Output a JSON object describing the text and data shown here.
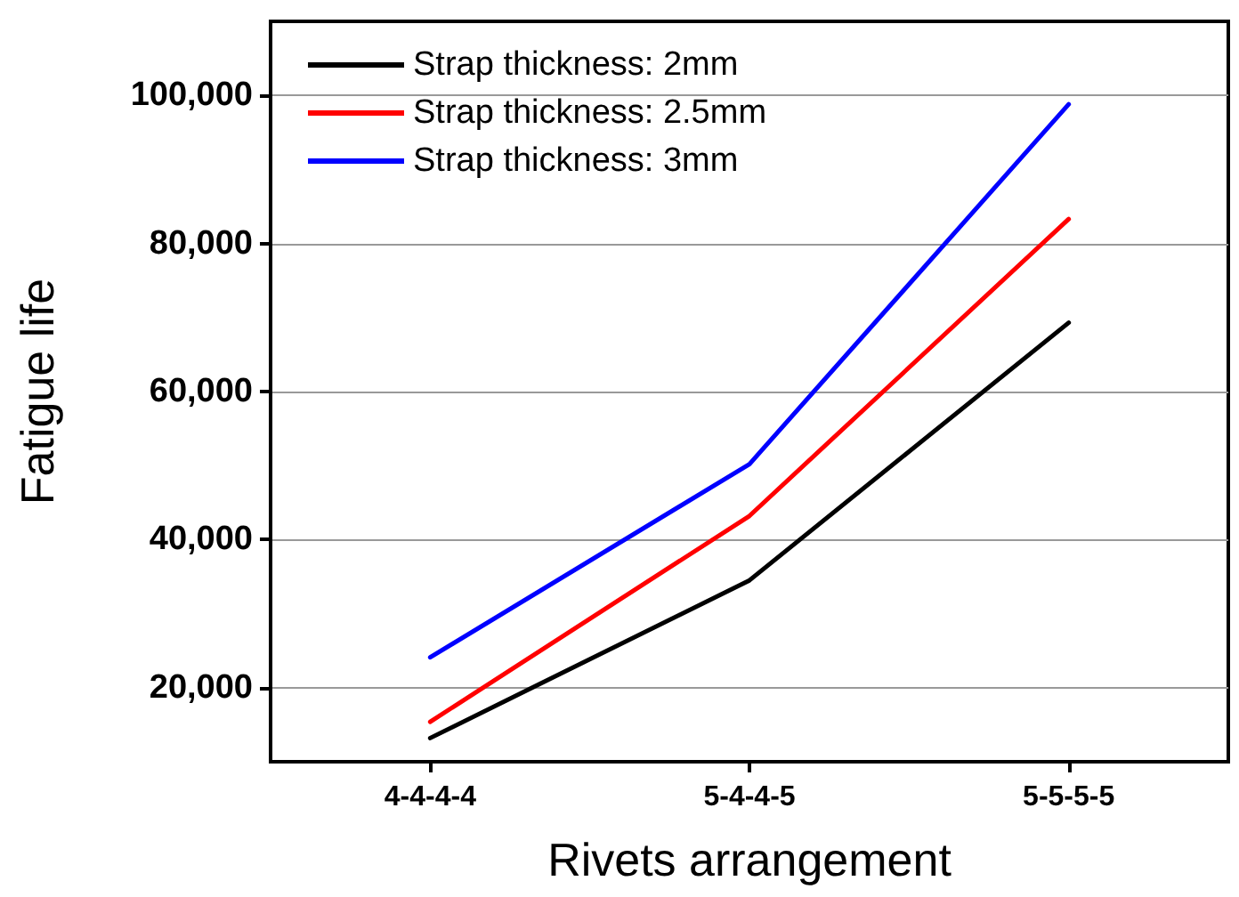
{
  "chart_data": {
    "type": "line",
    "xlabel": "Rivets arrangement",
    "ylabel": "Fatigue life",
    "categories": [
      "4-4-4-4",
      "5-4-4-5",
      "5-5-5-5"
    ],
    "series": [
      {
        "name": "Strap thickness: 2mm",
        "color": "#000000",
        "values": [
          13200,
          34500,
          69300
        ]
      },
      {
        "name": "Strap thickness: 2.5mm",
        "color": "#ff0000",
        "values": [
          15400,
          43200,
          83300
        ]
      },
      {
        "name": "Strap thickness: 3mm",
        "color": "#0000ff",
        "values": [
          24100,
          50200,
          98800
        ]
      }
    ],
    "ylim": [
      10000,
      110000
    ],
    "yticks": [
      {
        "value": 20000,
        "label": "20,000"
      },
      {
        "value": 40000,
        "label": "40,000"
      },
      {
        "value": 60000,
        "label": "60,000"
      },
      {
        "value": 80000,
        "label": "80,000"
      },
      {
        "value": 100000,
        "label": "100,000"
      }
    ],
    "grid": "y",
    "legend": "top left",
    "marker": "none",
    "line_style": "solid"
  }
}
